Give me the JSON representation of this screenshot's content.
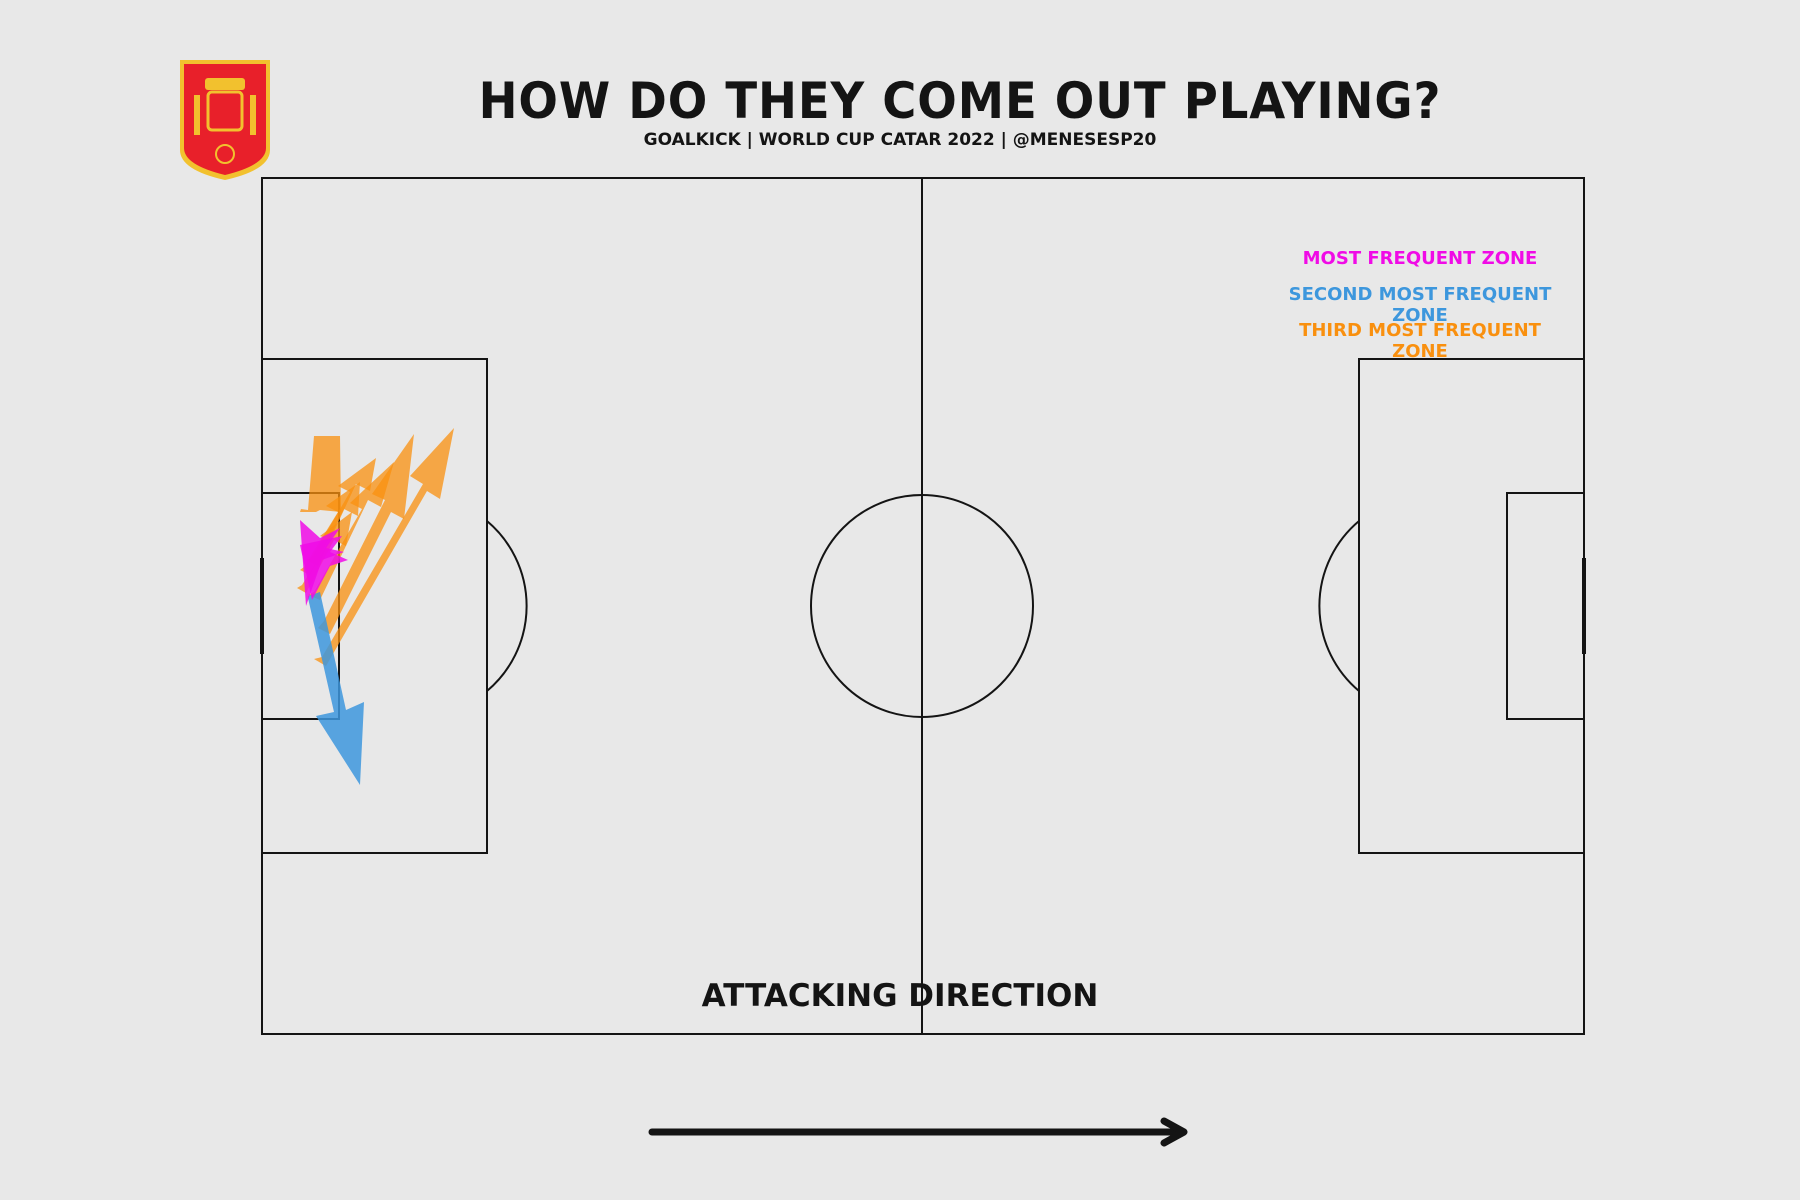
{
  "header": {
    "title": "HOW DO THEY COME OUT PLAYING?",
    "subtitle": "GOALKICK | WORLD CUP CATAR 2022 | @MENESESP20"
  },
  "legend": {
    "first": {
      "label": "MOST FREQUENT ZONE",
      "color": "#f00be6"
    },
    "second": {
      "label": "SECOND MOST FREQUENT ZONE",
      "color": "#3d97dd"
    },
    "third": {
      "label": "THIRD MOST FREQUENT ZONE",
      "color": "#f9900f"
    }
  },
  "direction": {
    "label": "ATTACKING DIRECTION"
  },
  "crest": {
    "icon": "spain-federation-crest-icon",
    "primary": "#e8202a",
    "trim": "#f2c12e"
  }
}
